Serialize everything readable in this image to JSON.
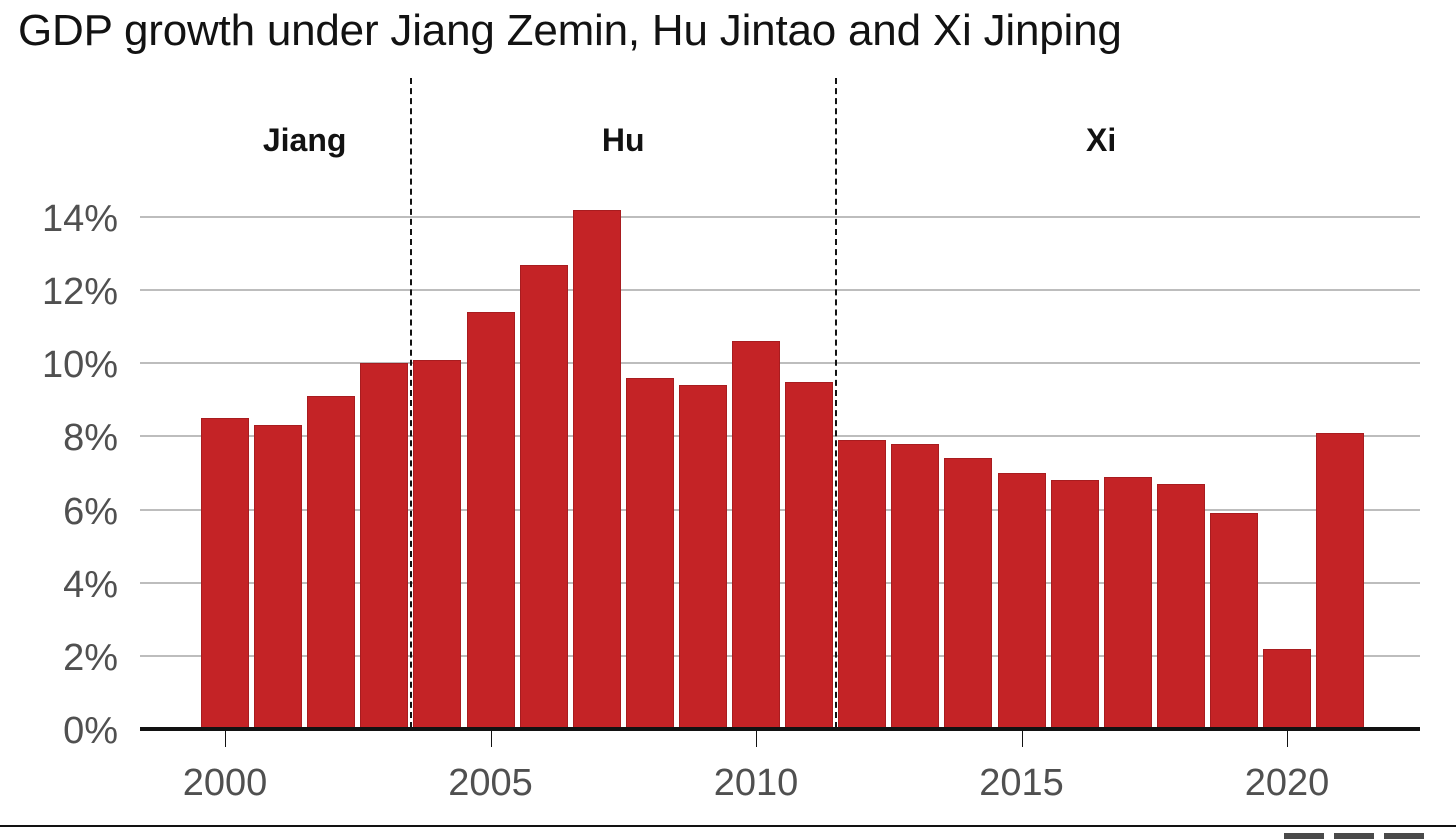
{
  "title": "GDP growth under Jiang Zemin, Hu Jintao and Xi Jinping",
  "chart_data": {
    "type": "bar",
    "title": "GDP growth under Jiang Zemin, Hu Jintao and Xi Jinping",
    "xlabel": "",
    "ylabel": "",
    "ylim": [
      0,
      14
    ],
    "grid": true,
    "legend": "none",
    "color": "#c42326",
    "categories": [
      "2000",
      "2001",
      "2002",
      "2003",
      "2004",
      "2005",
      "2006",
      "2007",
      "2008",
      "2009",
      "2010",
      "2011",
      "2012",
      "2013",
      "2014",
      "2015",
      "2016",
      "2017",
      "2018",
      "2019",
      "2020",
      "2021"
    ],
    "values": [
      8.5,
      8.3,
      9.1,
      10.0,
      10.1,
      11.4,
      12.7,
      14.2,
      9.6,
      9.4,
      10.6,
      9.5,
      7.9,
      7.8,
      7.4,
      7.0,
      6.8,
      6.9,
      6.7,
      5.9,
      2.2,
      8.1
    ],
    "y_ticks": [
      "0%",
      "2%",
      "4%",
      "6%",
      "8%",
      "10%",
      "12%",
      "14%"
    ],
    "x_ticks": [
      "2000",
      "2005",
      "2010",
      "2015",
      "2020"
    ],
    "annotations": [
      {
        "label": "Jiang",
        "span": [
          "2000",
          "2003"
        ]
      },
      {
        "label": "Hu",
        "span": [
          "2004",
          "2011"
        ]
      },
      {
        "label": "Xi",
        "span": [
          "2012",
          "2021"
        ]
      }
    ],
    "dividers_after": [
      "2003",
      "2011"
    ]
  }
}
